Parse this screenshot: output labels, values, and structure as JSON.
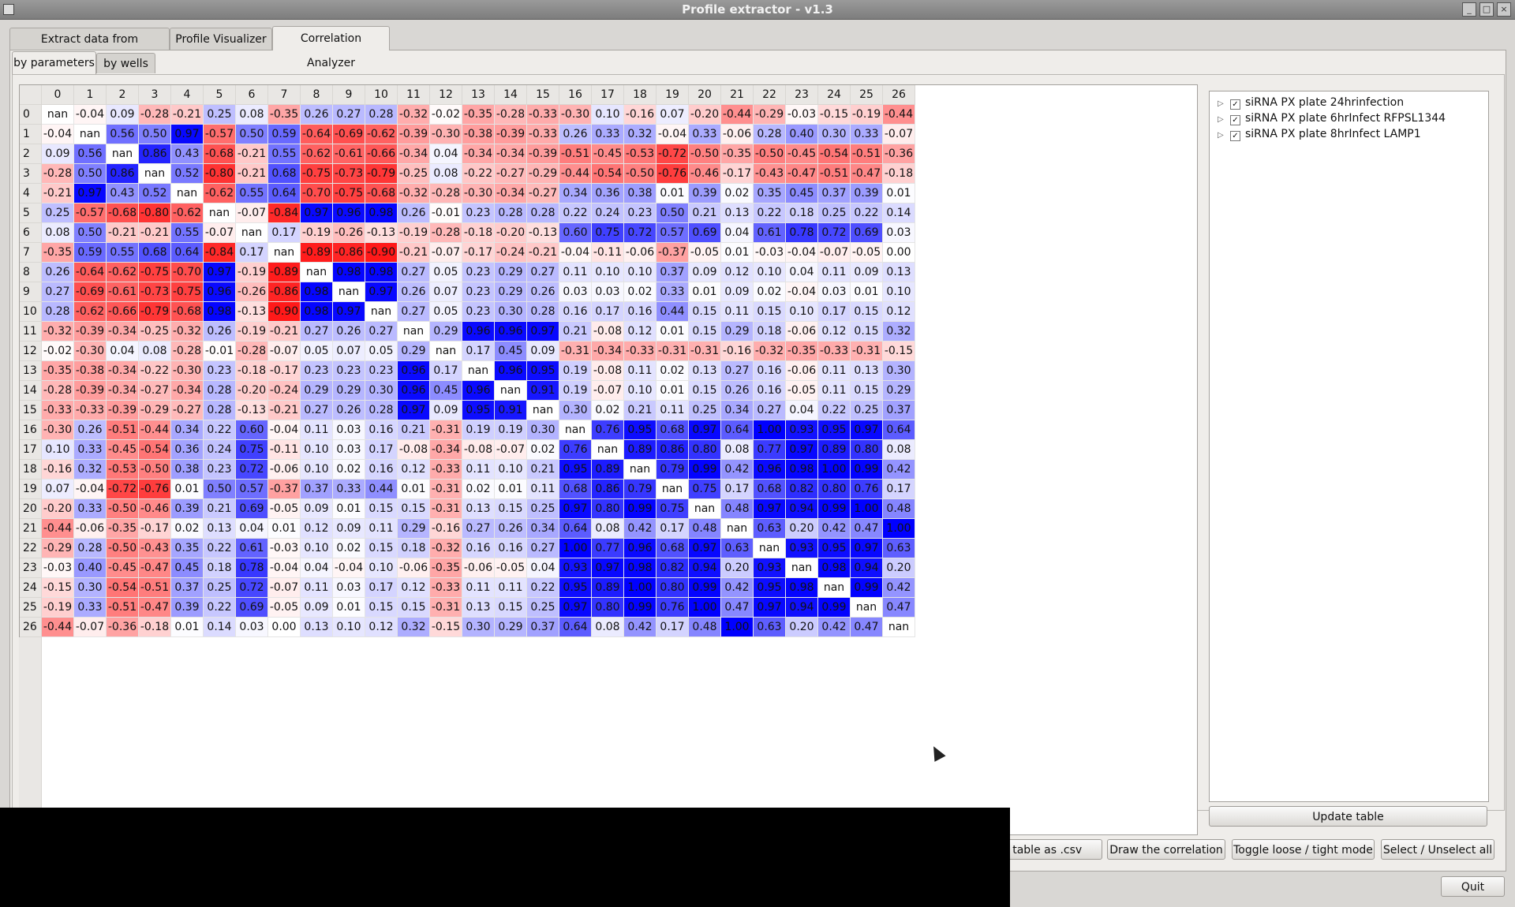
{
  "window": {
    "title": "Profile extractor - v1.3",
    "controls": [
      "_",
      "□",
      "×"
    ]
  },
  "main_tabs": [
    {
      "label": "Extract data from CellProfiler",
      "active": false
    },
    {
      "label": "Profile Visualizer",
      "active": false
    },
    {
      "label": "Correlation Analyzer",
      "active": true
    }
  ],
  "sub_tabs": [
    {
      "label": "by parameters",
      "active": true
    },
    {
      "label": "by wells",
      "active": false
    }
  ],
  "color_scale": {
    "negative": "#ff0000",
    "zero": "#ffffff",
    "positive": "#0000ff"
  },
  "table": {
    "columns": [
      "0",
      "1",
      "2",
      "3",
      "4",
      "5",
      "6",
      "7",
      "8",
      "9",
      "10",
      "11",
      "12",
      "13",
      "14",
      "15",
      "16",
      "17",
      "18",
      "19",
      "20",
      "21",
      "22",
      "23",
      "24",
      "25",
      "26"
    ],
    "rows": [
      {
        "label": "0",
        "cells": [
          "nan",
          "-0.04",
          "0.09",
          "-0.28",
          "-0.21",
          "0.25",
          "0.08",
          "-0.35",
          "0.26",
          "0.27",
          "0.28",
          "-0.32",
          "-0.02",
          "-0.35",
          "-0.28",
          "-0.33",
          "-0.30",
          "0.10",
          "-0.16",
          "0.07",
          "-0.20",
          "-0.44",
          "-0.29",
          "-0.03",
          "-0.15",
          "-0.19",
          "-0.44"
        ]
      },
      {
        "label": "1",
        "cells": [
          "-0.04",
          "nan",
          "0.56",
          "0.50",
          "0.97",
          "-0.57",
          "0.50",
          "0.59",
          "-0.64",
          "-0.69",
          "-0.62",
          "-0.39",
          "-0.30",
          "-0.38",
          "-0.39",
          "-0.33",
          "0.26",
          "0.33",
          "0.32",
          "-0.04",
          "0.33",
          "-0.06",
          "0.28",
          "0.40",
          "0.30",
          "0.33",
          "-0.07"
        ]
      },
      {
        "label": "2",
        "cells": [
          "0.09",
          "0.56",
          "nan",
          "0.86",
          "0.43",
          "-0.68",
          "-0.21",
          "0.55",
          "-0.62",
          "-0.61",
          "-0.66",
          "-0.34",
          "0.04",
          "-0.34",
          "-0.34",
          "-0.39",
          "-0.51",
          "-0.45",
          "-0.53",
          "-0.72",
          "-0.50",
          "-0.35",
          "-0.50",
          "-0.45",
          "-0.54",
          "-0.51",
          "-0.36"
        ]
      },
      {
        "label": "3",
        "cells": [
          "-0.28",
          "0.50",
          "0.86",
          "nan",
          "0.52",
          "-0.80",
          "-0.21",
          "0.68",
          "-0.75",
          "-0.73",
          "-0.79",
          "-0.25",
          "0.08",
          "-0.22",
          "-0.27",
          "-0.29",
          "-0.44",
          "-0.54",
          "-0.50",
          "-0.76",
          "-0.46",
          "-0.17",
          "-0.43",
          "-0.47",
          "-0.51",
          "-0.47",
          "-0.18"
        ]
      },
      {
        "label": "4",
        "cells": [
          "-0.21",
          "0.97",
          "0.43",
          "0.52",
          "nan",
          "-0.62",
          "0.55",
          "0.64",
          "-0.70",
          "-0.75",
          "-0.68",
          "-0.32",
          "-0.28",
          "-0.30",
          "-0.34",
          "-0.27",
          "0.34",
          "0.36",
          "0.38",
          "0.01",
          "0.39",
          "0.02",
          "0.35",
          "0.45",
          "0.37",
          "0.39",
          "0.01"
        ]
      },
      {
        "label": "5",
        "cells": [
          "0.25",
          "-0.57",
          "-0.68",
          "-0.80",
          "-0.62",
          "nan",
          "-0.07",
          "-0.84",
          "0.97",
          "0.96",
          "0.98",
          "0.26",
          "-0.01",
          "0.23",
          "0.28",
          "0.28",
          "0.22",
          "0.24",
          "0.23",
          "0.50",
          "0.21",
          "0.13",
          "0.22",
          "0.18",
          "0.25",
          "0.22",
          "0.14"
        ]
      },
      {
        "label": "6",
        "cells": [
          "0.08",
          "0.50",
          "-0.21",
          "-0.21",
          "0.55",
          "-0.07",
          "nan",
          "0.17",
          "-0.19",
          "-0.26",
          "-0.13",
          "-0.19",
          "-0.28",
          "-0.18",
          "-0.20",
          "-0.13",
          "0.60",
          "0.75",
          "0.72",
          "0.57",
          "0.69",
          "0.04",
          "0.61",
          "0.78",
          "0.72",
          "0.69",
          "0.03"
        ]
      },
      {
        "label": "7",
        "cells": [
          "-0.35",
          "0.59",
          "0.55",
          "0.68",
          "0.64",
          "-0.84",
          "0.17",
          "nan",
          "-0.89",
          "-0.86",
          "-0.90",
          "-0.21",
          "-0.07",
          "-0.17",
          "-0.24",
          "-0.21",
          "-0.04",
          "-0.11",
          "-0.06",
          "-0.37",
          "-0.05",
          "0.01",
          "-0.03",
          "-0.04",
          "-0.07",
          "-0.05",
          "0.00"
        ]
      },
      {
        "label": "8",
        "cells": [
          "0.26",
          "-0.64",
          "-0.62",
          "-0.75",
          "-0.70",
          "0.97",
          "-0.19",
          "-0.89",
          "nan",
          "0.98",
          "0.98",
          "0.27",
          "0.05",
          "0.23",
          "0.29",
          "0.27",
          "0.11",
          "0.10",
          "0.10",
          "0.37",
          "0.09",
          "0.12",
          "0.10",
          "0.04",
          "0.11",
          "0.09",
          "0.13"
        ]
      },
      {
        "label": "9",
        "cells": [
          "0.27",
          "-0.69",
          "-0.61",
          "-0.73",
          "-0.75",
          "0.96",
          "-0.26",
          "-0.86",
          "0.98",
          "nan",
          "0.97",
          "0.26",
          "0.07",
          "0.23",
          "0.29",
          "0.26",
          "0.03",
          "0.03",
          "0.02",
          "0.33",
          "0.01",
          "0.09",
          "0.02",
          "-0.04",
          "0.03",
          "0.01",
          "0.10"
        ]
      },
      {
        "label": "10",
        "cells": [
          "0.28",
          "-0.62",
          "-0.66",
          "-0.79",
          "-0.68",
          "0.98",
          "-0.13",
          "-0.90",
          "0.98",
          "0.97",
          "nan",
          "0.27",
          "0.05",
          "0.23",
          "0.30",
          "0.28",
          "0.16",
          "0.17",
          "0.16",
          "0.44",
          "0.15",
          "0.11",
          "0.15",
          "0.10",
          "0.17",
          "0.15",
          "0.12"
        ]
      },
      {
        "label": "11",
        "cells": [
          "-0.32",
          "-0.39",
          "-0.34",
          "-0.25",
          "-0.32",
          "0.26",
          "-0.19",
          "-0.21",
          "0.27",
          "0.26",
          "0.27",
          "nan",
          "0.29",
          "0.96",
          "0.96",
          "0.97",
          "0.21",
          "-0.08",
          "0.12",
          "0.01",
          "0.15",
          "0.29",
          "0.18",
          "-0.06",
          "0.12",
          "0.15",
          "0.32"
        ]
      },
      {
        "label": "12",
        "cells": [
          "-0.02",
          "-0.30",
          "0.04",
          "0.08",
          "-0.28",
          "-0.01",
          "-0.28",
          "-0.07",
          "0.05",
          "0.07",
          "0.05",
          "0.29",
          "nan",
          "0.17",
          "0.45",
          "0.09",
          "-0.31",
          "-0.34",
          "-0.33",
          "-0.31",
          "-0.31",
          "-0.16",
          "-0.32",
          "-0.35",
          "-0.33",
          "-0.31",
          "-0.15"
        ]
      },
      {
        "label": "13",
        "cells": [
          "-0.35",
          "-0.38",
          "-0.34",
          "-0.22",
          "-0.30",
          "0.23",
          "-0.18",
          "-0.17",
          "0.23",
          "0.23",
          "0.23",
          "0.96",
          "0.17",
          "nan",
          "0.96",
          "0.95",
          "0.19",
          "-0.08",
          "0.11",
          "0.02",
          "0.13",
          "0.27",
          "0.16",
          "-0.06",
          "0.11",
          "0.13",
          "0.30"
        ]
      },
      {
        "label": "14",
        "cells": [
          "-0.28",
          "-0.39",
          "-0.34",
          "-0.27",
          "-0.34",
          "0.28",
          "-0.20",
          "-0.24",
          "0.29",
          "0.29",
          "0.30",
          "0.96",
          "0.45",
          "0.96",
          "nan",
          "0.91",
          "0.19",
          "-0.07",
          "0.10",
          "0.01",
          "0.15",
          "0.26",
          "0.16",
          "-0.05",
          "0.11",
          "0.15",
          "0.29"
        ]
      },
      {
        "label": "15",
        "cells": [
          "-0.33",
          "-0.33",
          "-0.39",
          "-0.29",
          "-0.27",
          "0.28",
          "-0.13",
          "-0.21",
          "0.27",
          "0.26",
          "0.28",
          "0.97",
          "0.09",
          "0.95",
          "0.91",
          "nan",
          "0.30",
          "0.02",
          "0.21",
          "0.11",
          "0.25",
          "0.34",
          "0.27",
          "0.04",
          "0.22",
          "0.25",
          "0.37"
        ]
      },
      {
        "label": "16",
        "cells": [
          "-0.30",
          "0.26",
          "-0.51",
          "-0.44",
          "0.34",
          "0.22",
          "0.60",
          "-0.04",
          "0.11",
          "0.03",
          "0.16",
          "0.21",
          "-0.31",
          "0.19",
          "0.19",
          "0.30",
          "nan",
          "0.76",
          "0.95",
          "0.68",
          "0.97",
          "0.64",
          "1.00",
          "0.93",
          "0.95",
          "0.97",
          "0.64"
        ]
      },
      {
        "label": "17",
        "cells": [
          "0.10",
          "0.33",
          "-0.45",
          "-0.54",
          "0.36",
          "0.24",
          "0.75",
          "-0.11",
          "0.10",
          "0.03",
          "0.17",
          "-0.08",
          "-0.34",
          "-0.08",
          "-0.07",
          "0.02",
          "0.76",
          "nan",
          "0.89",
          "0.86",
          "0.80",
          "0.08",
          "0.77",
          "0.97",
          "0.89",
          "0.80",
          "0.08"
        ]
      },
      {
        "label": "18",
        "cells": [
          "-0.16",
          "0.32",
          "-0.53",
          "-0.50",
          "0.38",
          "0.23",
          "0.72",
          "-0.06",
          "0.10",
          "0.02",
          "0.16",
          "0.12",
          "-0.33",
          "0.11",
          "0.10",
          "0.21",
          "0.95",
          "0.89",
          "nan",
          "0.79",
          "0.99",
          "0.42",
          "0.96",
          "0.98",
          "1.00",
          "0.99",
          "0.42"
        ]
      },
      {
        "label": "19",
        "cells": [
          "0.07",
          "-0.04",
          "-0.72",
          "-0.76",
          "0.01",
          "0.50",
          "0.57",
          "-0.37",
          "0.37",
          "0.33",
          "0.44",
          "0.01",
          "-0.31",
          "0.02",
          "0.01",
          "0.11",
          "0.68",
          "0.86",
          "0.79",
          "nan",
          "0.75",
          "0.17",
          "0.68",
          "0.82",
          "0.80",
          "0.76",
          "0.17"
        ]
      },
      {
        "label": "20",
        "cells": [
          "-0.20",
          "0.33",
          "-0.50",
          "-0.46",
          "0.39",
          "0.21",
          "0.69",
          "-0.05",
          "0.09",
          "0.01",
          "0.15",
          "0.15",
          "-0.31",
          "0.13",
          "0.15",
          "0.25",
          "0.97",
          "0.80",
          "0.99",
          "0.75",
          "nan",
          "0.48",
          "0.97",
          "0.94",
          "0.99",
          "1.00",
          "0.48"
        ]
      },
      {
        "label": "21",
        "cells": [
          "-0.44",
          "-0.06",
          "-0.35",
          "-0.17",
          "0.02",
          "0.13",
          "0.04",
          "0.01",
          "0.12",
          "0.09",
          "0.11",
          "0.29",
          "-0.16",
          "0.27",
          "0.26",
          "0.34",
          "0.64",
          "0.08",
          "0.42",
          "0.17",
          "0.48",
          "nan",
          "0.63",
          "0.20",
          "0.42",
          "0.47",
          "1.00"
        ]
      },
      {
        "label": "22",
        "cells": [
          "-0.29",
          "0.28",
          "-0.50",
          "-0.43",
          "0.35",
          "0.22",
          "0.61",
          "-0.03",
          "0.10",
          "0.02",
          "0.15",
          "0.18",
          "-0.32",
          "0.16",
          "0.16",
          "0.27",
          "1.00",
          "0.77",
          "0.96",
          "0.68",
          "0.97",
          "0.63",
          "nan",
          "0.93",
          "0.95",
          "0.97",
          "0.63"
        ]
      },
      {
        "label": "23",
        "cells": [
          "-0.03",
          "0.40",
          "-0.45",
          "-0.47",
          "0.45",
          "0.18",
          "0.78",
          "-0.04",
          "0.04",
          "-0.04",
          "0.10",
          "-0.06",
          "-0.35",
          "-0.06",
          "-0.05",
          "0.04",
          "0.93",
          "0.97",
          "0.98",
          "0.82",
          "0.94",
          "0.20",
          "0.93",
          "nan",
          "0.98",
          "0.94",
          "0.20"
        ]
      },
      {
        "label": "24",
        "cells": [
          "-0.15",
          "0.30",
          "-0.54",
          "-0.51",
          "0.37",
          "0.25",
          "0.72",
          "-0.07",
          "0.11",
          "0.03",
          "0.17",
          "0.12",
          "-0.33",
          "0.11",
          "0.11",
          "0.22",
          "0.95",
          "0.89",
          "1.00",
          "0.80",
          "0.99",
          "0.42",
          "0.95",
          "0.98",
          "nan",
          "0.99",
          "0.42"
        ]
      },
      {
        "label": "25",
        "cells": [
          "-0.19",
          "0.33",
          "-0.51",
          "-0.47",
          "0.39",
          "0.22",
          "0.69",
          "-0.05",
          "0.09",
          "0.01",
          "0.15",
          "0.15",
          "-0.31",
          "0.13",
          "0.15",
          "0.25",
          "0.97",
          "0.80",
          "0.99",
          "0.76",
          "1.00",
          "0.47",
          "0.97",
          "0.94",
          "0.99",
          "nan",
          "0.47"
        ]
      },
      {
        "label": "26",
        "cells": [
          "-0.44",
          "-0.07",
          "-0.36",
          "-0.18",
          "0.01",
          "0.14",
          "0.03",
          "0.00",
          "0.13",
          "0.10",
          "0.12",
          "0.32",
          "-0.15",
          "0.30",
          "0.29",
          "0.37",
          "0.64",
          "0.08",
          "0.42",
          "0.17",
          "0.48",
          "1.00",
          "0.63",
          "0.20",
          "0.42",
          "0.47",
          "nan"
        ]
      }
    ]
  },
  "plates": [
    {
      "label": "siRNA PX plate 24hrinfection",
      "checked": true
    },
    {
      "label": "siRNA PX plate 6hrInfect RFPSL1344",
      "checked": true
    },
    {
      "label": "siRNA PX plate 8hrInfect LAMP1",
      "checked": true
    }
  ],
  "buttons": {
    "update_table": "Update table",
    "export_csv": "ent table as .csv",
    "draw_correlation": "Draw the correlation",
    "toggle_mode": "Toggle loose / tight mode",
    "select_all": "Select / Unselect all",
    "quit": "Quit"
  }
}
